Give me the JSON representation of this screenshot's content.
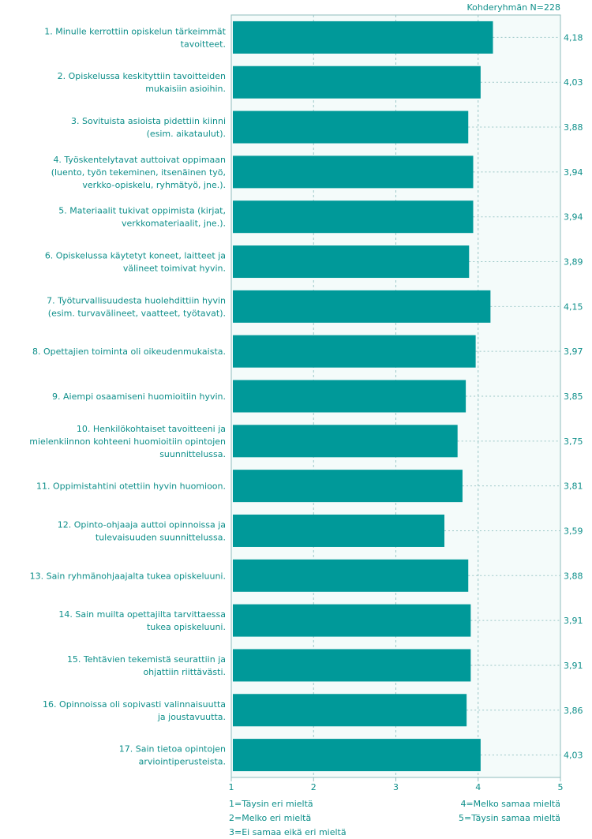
{
  "header": {
    "group_n": "Kohderyhmän N=228"
  },
  "legend": {
    "left": [
      "1=Täysin eri mieltä",
      "2=Melko eri mieltä",
      "3=Ei samaa eikä eri mieltä"
    ],
    "right": [
      "4=Melko samaa mieltä",
      "5=Täysin samaa mieltä"
    ]
  },
  "colors": {
    "bar": "#009999",
    "plot_background": "#f4fbfa",
    "text": "#0e8f8a"
  },
  "chart_data": {
    "type": "bar",
    "orientation": "horizontal",
    "xlim": [
      1,
      5
    ],
    "xticks": [
      1,
      2,
      3,
      4,
      5
    ],
    "grid": true,
    "categories": [
      [
        "1. Minulle kerrottiin opiskelun tärkeimmät",
        "tavoitteet."
      ],
      [
        "2. Opiskelussa keskityttiin tavoitteiden",
        "mukaisiin asioihin."
      ],
      [
        "3. Sovituista asioista pidettiin kiinni",
        "(esim. aikataulut)."
      ],
      [
        "4. Työskentelytavat auttoivat oppimaan",
        "(luento, työn tekeminen, itsenäinen työ,",
        "verkko-opiskelu, ryhmätyö, jne.)."
      ],
      [
        "5. Materiaalit tukivat oppimista (kirjat,",
        "verkkomateriaalit, jne.)."
      ],
      [
        "6. Opiskelussa käytetyt koneet, laitteet ja",
        "välineet toimivat hyvin."
      ],
      [
        "7. Työturvallisuudesta huolehdittiin hyvin",
        "(esim. turvavälineet, vaatteet, työtavat)."
      ],
      [
        "8. Opettajien toiminta oli oikeudenmukaista."
      ],
      [
        "9. Aiempi osaamiseni huomioitiin hyvin."
      ],
      [
        "10. Henkilökohtaiset tavoitteeni ja",
        "mielenkiinnon kohteeni huomioitiin opintojen",
        "suunnittelussa."
      ],
      [
        "11. Oppimistahtini otettiin hyvin huomioon."
      ],
      [
        "12. Opinto-ohjaaja auttoi opinnoissa ja",
        "tulevaisuuden suunnittelussa."
      ],
      [
        "13. Sain ryhmänohjaajalta tukea opiskeluuni."
      ],
      [
        "14. Sain muilta opettajilta tarvittaessa",
        "tukea opiskeluuni."
      ],
      [
        "15. Tehtävien tekemistä seurattiin ja",
        "ohjattiin riittävästi."
      ],
      [
        "16. Opinnoissa oli sopivasti valinnaisuutta",
        "ja joustavuutta."
      ],
      [
        "17. Sain tietoa opintojen",
        "arviointiperusteista."
      ]
    ],
    "values": [
      4.18,
      4.03,
      3.88,
      3.94,
      3.94,
      3.89,
      4.15,
      3.97,
      3.85,
      3.75,
      3.81,
      3.59,
      3.88,
      3.91,
      3.91,
      3.86,
      4.03
    ],
    "value_labels": [
      "4,18",
      "4,03",
      "3,88",
      "3,94",
      "3,94",
      "3,89",
      "4,15",
      "3,97",
      "3,85",
      "3,75",
      "3,81",
      "3,59",
      "3,88",
      "3,91",
      "3,91",
      "3,86",
      "4,03"
    ]
  }
}
